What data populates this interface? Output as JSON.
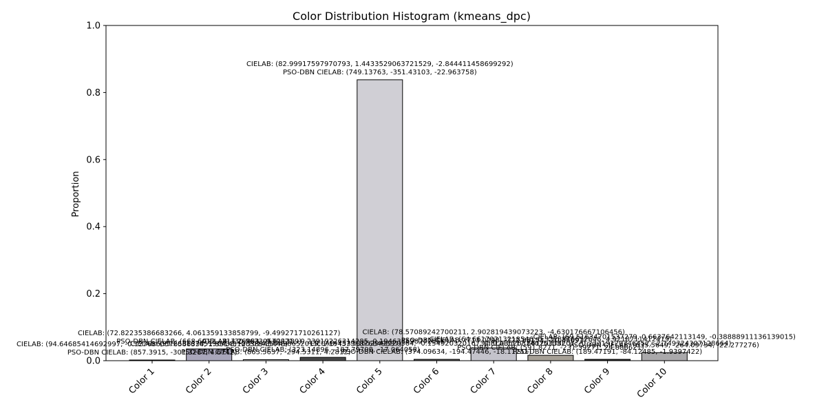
{
  "chart_data": {
    "type": "bar",
    "title": "Color Distribution Histogram (kmeans_dpc)",
    "xlabel": "",
    "ylabel": "Proportion",
    "ylim": [
      0,
      1.0
    ],
    "y_ticks": [
      "0.0",
      "0.2",
      "0.4",
      "0.6",
      "0.8",
      "1.0"
    ],
    "grid": false,
    "categories": [
      "Color 1",
      "Color 2",
      "Color 3",
      "Color 4",
      "Color 5",
      "Color 6",
      "Color 7",
      "Color 8",
      "Color 9",
      "Color 10"
    ],
    "values": [
      0.002,
      0.035,
      0.003,
      0.01,
      0.838,
      0.004,
      0.038,
      0.016,
      0.004,
      0.024
    ],
    "colors": [
      "#f0f0f0",
      "#a9a6bb",
      "#f2f2f2",
      "#484848",
      "#d0cfd5",
      "#5a5a5a",
      "#c4c3cb",
      "#a6a096",
      "#2a2a2a",
      "#aaa9ab"
    ],
    "annotations": [
      [
        "CIELAB: (94.64685414692997, -0.1276860576566334, 1.3514312038945446)",
        "PSO-DBN CIELAB: (857.3915, -301.3287, 4.6742)"
      ],
      [
        "CIELAB: (72.82235386683266, 4.061359133858799, -9.499271710261127)",
        "PSO-DBN CIELAB: (668.6012, -313.26883, -9.611389)"
      ],
      [
        "CIELAB: (95.26316785196438, -0.2014357498652015, 1.1945391876049537)",
        "PSO-DBN CIELAB: (863.5637, -294.5311, 4.2812)"
      ],
      [
        "CIELAB: (30.96330539821, -0.23919226314285, 0.19463869874256)",
        "PSO-DBN CIELAB: (323.14896, -187.79708, -17.064058)"
      ],
      [
        "CIELAB: (82.99917597970793, 1.4433529063721529, -2.844411458699292)",
        "PSO-DBN CIELAB: (749.13763, -351.43103, -22.963758)"
      ],
      [
        "CIELAB: (37.51652943920364, -0.15492032016734, 0.03626314075103)",
        "PSO-DBN CIELAB: (374.09634, -194.47446, -18.11251)"
      ],
      [
        "CIELAB: (78.57089242700211, 2.902819439073223, -4.630176667106456)",
        "PSO-DBN CIELAB: (713.0298, -322.85153, -20.36691)"
      ],
      [
        "CIELAB: (64.66170213218546, 0.3318876652646, 4.9218711412419)",
        "PSO-DBN CIELAB: (591.8271, -231.39271, 24.886621)"
      ],
      [
        "CIELAB: (17.86120338207, -0.23319120746452, -2.149324307128664)",
        "PSO-DBN CIELAB: (189.47191, -84.12485, -1.9397422)"
      ],
      [
        "CIELAB: (69.51634701537279, 0.6637642113149, -0.38888911136139015)",
        "PSO-DBN CIELAB: (635.5649, -264.09734, -22.277276)"
      ]
    ]
  }
}
